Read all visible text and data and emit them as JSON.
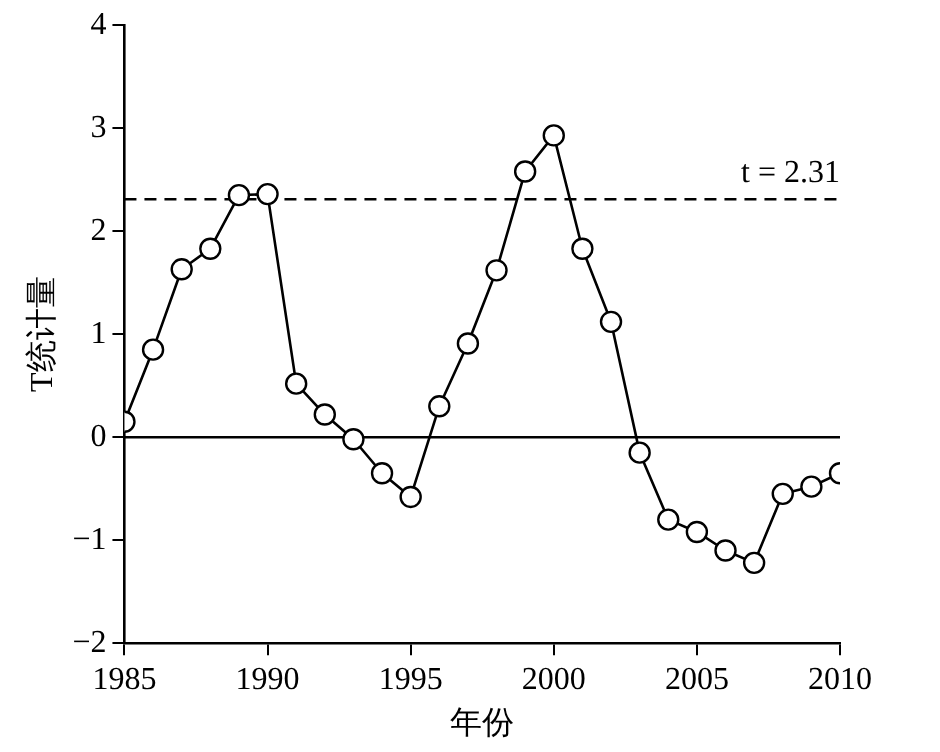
{
  "chart_data": {
    "type": "line",
    "xlabel": "年份",
    "ylabel": "T统计量",
    "x": [
      1985,
      1986,
      1987,
      1988,
      1989,
      1990,
      1991,
      1992,
      1993,
      1994,
      1995,
      1996,
      1997,
      1998,
      1999,
      2000,
      2001,
      2002,
      2003,
      2004,
      2005,
      2006,
      2007,
      2008,
      2009,
      2010
    ],
    "series": [
      {
        "color": "#000000",
        "values": [
          0.15,
          0.85,
          1.63,
          1.83,
          2.35,
          2.36,
          0.52,
          0.22,
          -0.02,
          -0.35,
          -0.58,
          0.3,
          0.91,
          1.62,
          2.58,
          2.93,
          1.83,
          1.12,
          -0.15,
          -0.8,
          -0.92,
          -1.1,
          -1.22,
          -0.55,
          -0.48,
          -0.35
        ]
      }
    ],
    "xlim": [
      1985,
      2010
    ],
    "xticks": [
      1985,
      1990,
      1995,
      2000,
      2005,
      2010
    ],
    "ylim": [
      -2,
      4
    ],
    "yticks": [
      -2,
      -1,
      0,
      1,
      2,
      3,
      4
    ],
    "ref_lines": [
      {
        "axis": "y",
        "value": 2.31,
        "label": "t = 2.31",
        "line_style": "dashed",
        "color": "#000000"
      },
      {
        "axis": "y",
        "value": 0,
        "line_style": "solid",
        "color": "#000000"
      }
    ],
    "grid": false,
    "legend": false,
    "marker": "circle",
    "line_style": "solid"
  }
}
